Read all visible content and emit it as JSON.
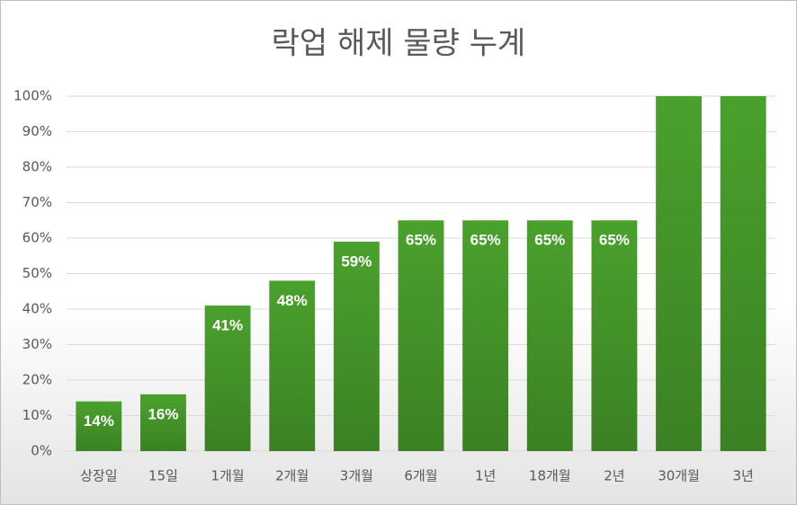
{
  "chart_data": {
    "type": "bar",
    "title": "락업 해제 물량 누계",
    "categories": [
      "상장일",
      "15일",
      "1개월",
      "2개월",
      "3개월",
      "6개월",
      "1년",
      "18개월",
      "2년",
      "30개월",
      "3년"
    ],
    "values": [
      14,
      16,
      41,
      48,
      59,
      65,
      65,
      65,
      65,
      100,
      100
    ],
    "value_labels": [
      "14%",
      "16%",
      "41%",
      "48%",
      "59%",
      "65%",
      "65%",
      "65%",
      "65%",
      null,
      null
    ],
    "color": "#4aa12c",
    "ylim": [
      0,
      100
    ],
    "yticks": [
      {
        "value": 0,
        "label": "0%"
      },
      {
        "value": 10,
        "label": "10%"
      },
      {
        "value": 20,
        "label": "20%"
      },
      {
        "value": 30,
        "label": "30%"
      },
      {
        "value": 40,
        "label": "40%"
      },
      {
        "value": 50,
        "label": "50%"
      },
      {
        "value": 60,
        "label": "60%"
      },
      {
        "value": 70,
        "label": "70%"
      },
      {
        "value": 80,
        "label": "80%"
      },
      {
        "value": 90,
        "label": "90%"
      },
      {
        "value": 100,
        "label": "100%"
      }
    ],
    "grid": true
  }
}
